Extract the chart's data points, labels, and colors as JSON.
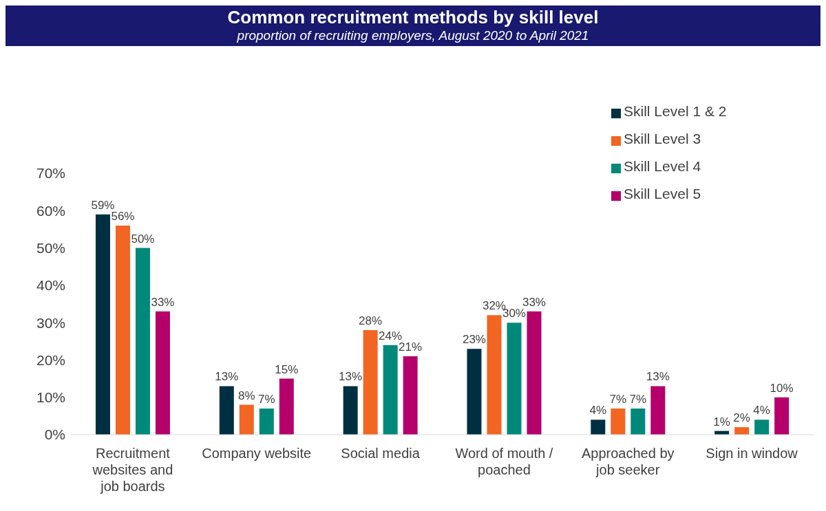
{
  "chart_data": {
    "type": "bar",
    "title": "Common recruitment methods by skill level",
    "subtitle": "proportion of recruiting employers, August 2020 to April 2021",
    "categories": [
      "Recruitment websites and job boards",
      "Company website",
      "Social media",
      "Word of mouth / poached",
      "Approached by job seeker",
      "Sign in window"
    ],
    "series": [
      {
        "name": "Skill Level 1 & 2",
        "color": "#002f42",
        "values": [
          59,
          13,
          13,
          23,
          4,
          1
        ],
        "value_labels": [
          "59%",
          "13%",
          "13%",
          "23%",
          "4%",
          "1%"
        ]
      },
      {
        "name": "Skill Level 3",
        "color": "#f26522",
        "values": [
          56,
          8,
          28,
          32,
          7,
          2
        ],
        "value_labels": [
          "56%",
          "8%",
          "28%",
          "32%",
          "7%",
          "2%"
        ]
      },
      {
        "name": "Skill Level 4",
        "color": "#00897a",
        "values": [
          50,
          7,
          24,
          30,
          7,
          4
        ],
        "value_labels": [
          "50%",
          "7%",
          "24%",
          "30%",
          "7%",
          "4%"
        ]
      },
      {
        "name": "Skill Level 5",
        "color": "#b5006b",
        "values": [
          33,
          15,
          21,
          33,
          13,
          10
        ],
        "value_labels": [
          "33%",
          "15%",
          "21%",
          "33%",
          "13%",
          "10%"
        ]
      }
    ],
    "ylim": [
      0,
      70
    ],
    "yticks": [
      {
        "value": 0,
        "label": "0%"
      },
      {
        "value": 10,
        "label": "10%"
      },
      {
        "value": 20,
        "label": "20%"
      },
      {
        "value": 30,
        "label": "30%"
      },
      {
        "value": 40,
        "label": "40%"
      },
      {
        "value": 50,
        "label": "50%"
      },
      {
        "value": 60,
        "label": "60%"
      },
      {
        "value": 70,
        "label": "70%"
      }
    ],
    "grid": false,
    "legend": "top right"
  }
}
